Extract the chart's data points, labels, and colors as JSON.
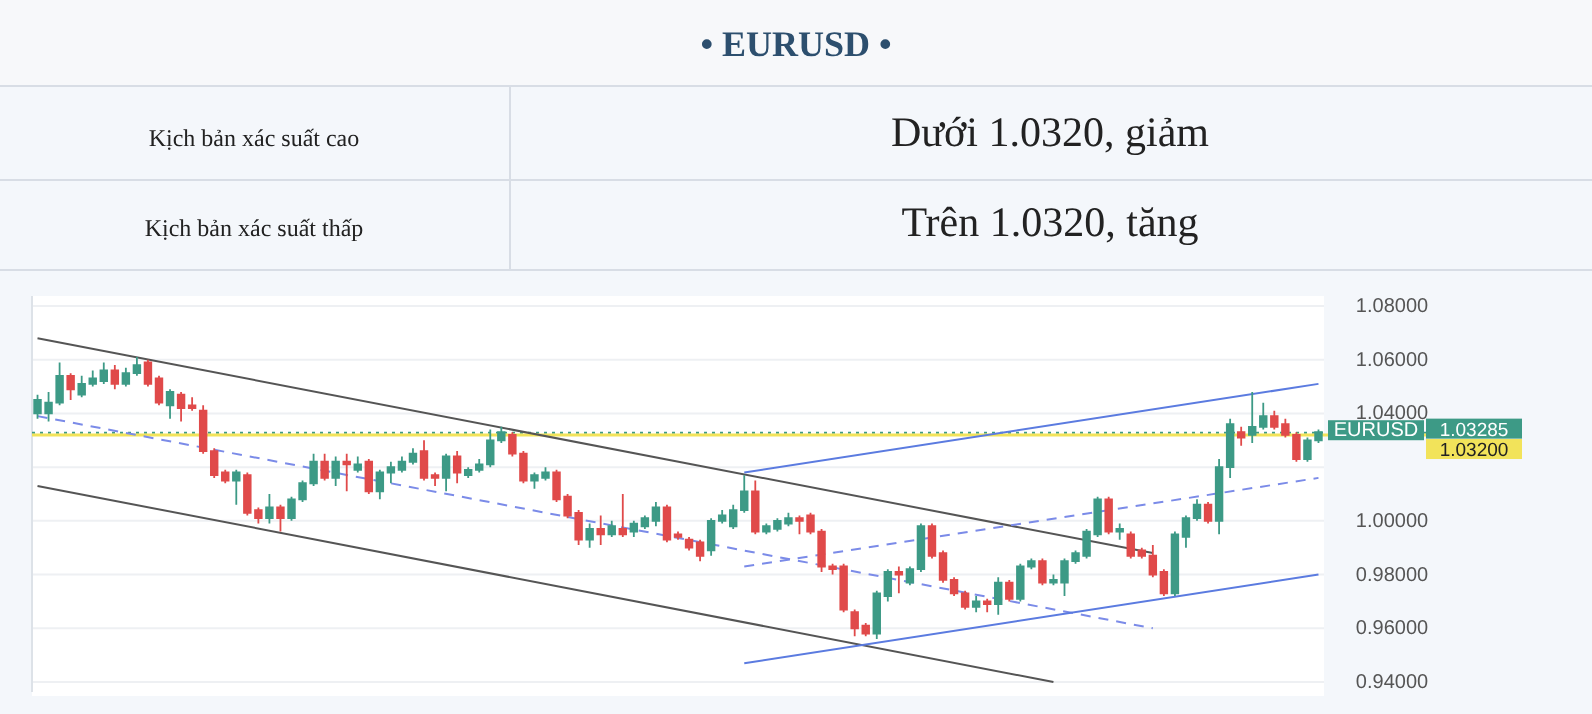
{
  "chart_data": {
    "type": "candlestick",
    "title": "• EURUSD •",
    "annotations": [
      "Kịch bản xác suất cao",
      "Dưới 1.0320, giảm",
      "Kịch bản xác suất thấp",
      "Trên 1.0320, tăng"
    ],
    "categories": [
      null,
      null,
      null,
      null,
      null,
      null,
      null,
      null,
      null,
      null,
      null,
      null,
      null,
      null,
      null,
      null,
      null,
      null,
      null,
      null,
      null,
      null,
      null,
      null,
      null,
      null,
      null,
      null,
      null,
      null,
      null,
      null,
      null,
      null,
      null,
      null,
      null,
      null,
      null,
      null,
      null,
      null,
      null,
      null,
      null,
      null,
      null,
      null,
      null,
      null,
      null,
      null,
      null,
      null,
      null,
      null,
      null,
      null,
      null,
      null,
      null,
      null,
      null,
      null,
      null,
      null,
      null,
      null,
      null,
      null,
      null,
      null,
      null,
      null,
      null,
      null,
      null,
      null,
      null,
      null,
      null,
      null,
      null,
      null,
      null,
      null,
      null,
      null,
      null,
      null,
      null,
      null,
      null,
      null,
      null,
      null,
      null,
      null,
      null,
      null,
      null,
      null,
      null,
      null,
      null,
      null,
      null,
      null,
      null,
      null,
      null,
      null,
      null,
      null,
      null,
      null,
      null
    ],
    "ylim": [
      0.94,
      1.08
    ],
    "yticks": [
      {
        "value": 0.94,
        "label": "0.94000"
      },
      {
        "value": 0.96,
        "label": "0.96000"
      },
      {
        "value": 0.98,
        "label": "0.98000"
      },
      {
        "value": 1.0,
        "label": "1.00000"
      },
      {
        "value": 1.02,
        "label": null
      },
      {
        "value": 1.04,
        "label": "1.04000"
      },
      {
        "value": 1.06,
        "label": "1.06000"
      },
      {
        "value": 1.08,
        "label": "1.08000"
      }
    ],
    "tick_labels": "y",
    "grid": "y",
    "legend": "right",
    "ref_lines": [
      {
        "axis": "y",
        "value": 1.03285,
        "label": "1.03285",
        "color": "#3d9a86",
        "line_style": "dotted"
      },
      {
        "axis": "y",
        "value": 1.032,
        "label": "1.03200",
        "color": "#f2e35a",
        "line_style": "solid"
      }
    ],
    "series": [
      {
        "name": "EURUSD",
        "colors": [
          "#3d9a86",
          "#3d9a86",
          "#3d9a86",
          "#e04a4a",
          "#3d9a86",
          "#3d9a86",
          "#3d9a86",
          "#e04a4a",
          "#3d9a86",
          "#3d9a86",
          "#e04a4a",
          "#e04a4a",
          "#3d9a86",
          "#e04a4a",
          "#e04a4a",
          "#e04a4a",
          "#e04a4a",
          "#e04a4a",
          "#3d9a86",
          "#e04a4a",
          "#e04a4a",
          "#3d9a86",
          "#e04a4a",
          "#3d9a86",
          "#3d9a86",
          "#3d9a86",
          "#e04a4a",
          "#3d9a86",
          "#e04a4a",
          "#3d9a86",
          "#e04a4a",
          "#3d9a86",
          "#3d9a86",
          "#3d9a86",
          "#3d9a86",
          "#e04a4a",
          "#e04a4a",
          "#3d9a86",
          "#e04a4a",
          "#3d9a86",
          "#3d9a86",
          "#3d9a86",
          "#3d9a86",
          "#e04a4a",
          "#e04a4a",
          "#3d9a86",
          "#3d9a86",
          "#e04a4a",
          "#e04a4a",
          "#e04a4a",
          "#3d9a86",
          "#e04a4a",
          "#3d9a86",
          "#e04a4a",
          "#3d9a86",
          "#3d9a86",
          "#3d9a86",
          "#e04a4a",
          "#e04a4a",
          "#e04a4a",
          "#e04a4a",
          "#3d9a86",
          "#3d9a86",
          "#3d9a86",
          "#3d9a86",
          "#e04a4a",
          "#3d9a86",
          "#3d9a86",
          "#3d9a86",
          "#e04a4a",
          "#e04a4a",
          "#e04a4a",
          "#e04a4a",
          "#e04a4a",
          "#e04a4a",
          "#e04a4a",
          "#3d9a86",
          "#3d9a86",
          "#e04a4a",
          "#3d9a86",
          "#3d9a86",
          "#e04a4a",
          "#e04a4a",
          "#e04a4a",
          "#e04a4a",
          "#3d9a86",
          "#e04a4a",
          "#3d9a86",
          "#e04a4a",
          "#3d9a86",
          "#3d9a86",
          "#e04a4a",
          "#3d9a86",
          "#3d9a86",
          "#3d9a86",
          "#3d9a86",
          "#3d9a86",
          "#e04a4a",
          "#3d9a86",
          "#e04a4a",
          "#e04a4a",
          "#e04a4a",
          "#e04a4a",
          "#3d9a86",
          "#3d9a86",
          "#3d9a86",
          "#e04a4a",
          "#3d9a86",
          "#3d9a86",
          "#e04a4a",
          "#3d9a86",
          "#3d9a86",
          "#e04a4a",
          "#e04a4a",
          "#e04a4a",
          "#3d9a86",
          "#3d9a86"
        ],
        "type": "candlestick",
        "ohlc": [
          [
            1.04,
            1.047,
            1.038,
            1.045
          ],
          [
            1.04,
            1.048,
            1.037,
            1.044
          ],
          [
            1.044,
            1.059,
            1.043,
            1.054
          ],
          [
            1.054,
            1.055,
            1.045,
            1.049
          ],
          [
            1.047,
            1.054,
            1.046,
            1.051
          ],
          [
            1.051,
            1.056,
            1.05,
            1.053
          ],
          [
            1.052,
            1.059,
            1.051,
            1.056
          ],
          [
            1.056,
            1.058,
            1.049,
            1.051
          ],
          [
            1.051,
            1.057,
            1.05,
            1.055
          ],
          [
            1.055,
            1.061,
            1.054,
            1.058
          ],
          [
            1.059,
            1.06,
            1.05,
            1.051
          ],
          [
            1.053,
            1.054,
            1.043,
            1.044
          ],
          [
            1.043,
            1.049,
            1.038,
            1.048
          ],
          [
            1.047,
            1.048,
            1.037,
            1.042
          ],
          [
            1.043,
            1.046,
            1.041,
            1.042
          ],
          [
            1.041,
            1.043,
            1.025,
            1.026
          ],
          [
            1.026,
            1.027,
            1.016,
            1.017
          ],
          [
            1.018,
            1.019,
            1.014,
            1.015
          ],
          [
            1.015,
            1.019,
            1.006,
            1.018
          ],
          [
            1.017,
            1.018,
            1.002,
            1.003
          ],
          [
            1.004,
            1.005,
            0.999,
            1.001
          ],
          [
            1.001,
            1.01,
            0.999,
            1.005
          ],
          [
            1.005,
            1.006,
            0.996,
            1.001
          ],
          [
            1.001,
            1.009,
            1.0,
            1.008
          ],
          [
            1.008,
            1.015,
            1.007,
            1.014
          ],
          [
            1.014,
            1.025,
            1.013,
            1.022
          ],
          [
            1.022,
            1.025,
            1.015,
            1.016
          ],
          [
            1.016,
            1.024,
            1.013,
            1.022
          ],
          [
            1.022,
            1.025,
            1.011,
            1.021
          ],
          [
            1.019,
            1.024,
            1.018,
            1.021
          ],
          [
            1.022,
            1.023,
            1.01,
            1.011
          ],
          [
            1.011,
            1.019,
            1.008,
            1.018
          ],
          [
            1.018,
            1.022,
            1.014,
            1.02
          ],
          [
            1.019,
            1.024,
            1.018,
            1.022
          ],
          [
            1.022,
            1.027,
            1.021,
            1.025
          ],
          [
            1.026,
            1.03,
            1.015,
            1.016
          ],
          [
            1.017,
            1.018,
            1.013,
            1.016
          ],
          [
            1.016,
            1.025,
            1.011,
            1.024
          ],
          [
            1.024,
            1.026,
            1.014,
            1.018
          ],
          [
            1.017,
            1.02,
            1.016,
            1.019
          ],
          [
            1.019,
            1.023,
            1.018,
            1.021
          ],
          [
            1.021,
            1.034,
            1.02,
            1.03
          ],
          [
            1.03,
            1.035,
            1.029,
            1.033
          ],
          [
            1.032,
            1.033,
            1.024,
            1.025
          ],
          [
            1.025,
            1.026,
            1.014,
            1.015
          ],
          [
            1.015,
            1.018,
            1.012,
            1.017
          ],
          [
            1.016,
            1.02,
            1.015,
            1.018
          ],
          [
            1.018,
            1.019,
            1.007,
            1.008
          ],
          [
            1.009,
            1.01,
            1.001,
            1.002
          ],
          [
            1.003,
            1.004,
            0.991,
            0.993
          ],
          [
            0.993,
            0.999,
            0.99,
            0.997
          ],
          [
            0.997,
            1.002,
            0.991,
            0.995
          ],
          [
            0.995,
            1.0,
            0.994,
            0.998
          ],
          [
            0.997,
            1.01,
            0.994,
            0.995
          ],
          [
            0.996,
            1.0,
            0.994,
            0.999
          ],
          [
            0.998,
            1.002,
            0.997,
            1.001
          ],
          [
            1.0,
            1.007,
            0.998,
            1.005
          ],
          [
            1.005,
            1.006,
            0.992,
            0.993
          ],
          [
            0.995,
            0.996,
            0.993,
            0.994
          ],
          [
            0.993,
            0.994,
            0.989,
            0.99
          ],
          [
            0.992,
            0.993,
            0.985,
            0.987
          ],
          [
            0.989,
            1.001,
            0.987,
            1.0
          ],
          [
            1.0,
            1.004,
            0.999,
            1.002
          ],
          [
            0.998,
            1.006,
            0.997,
            1.004
          ],
          [
            1.004,
            1.017,
            1.003,
            1.011
          ],
          [
            1.011,
            1.015,
            0.995,
            0.996
          ],
          [
            0.996,
            0.999,
            0.995,
            0.998
          ],
          [
            0.997,
            1.001,
            0.996,
            1.0
          ],
          [
            0.999,
            1.003,
            0.998,
            1.001
          ],
          [
            1.001,
            1.002,
            0.995,
            1.0
          ],
          [
            1.002,
            1.003,
            0.995,
            0.996
          ],
          [
            0.996,
            0.997,
            0.981,
            0.983
          ],
          [
            0.983,
            0.984,
            0.98,
            0.982
          ],
          [
            0.983,
            0.984,
            0.966,
            0.967
          ],
          [
            0.966,
            0.967,
            0.957,
            0.96
          ],
          [
            0.961,
            0.962,
            0.957,
            0.958
          ],
          [
            0.958,
            0.974,
            0.956,
            0.973
          ],
          [
            0.972,
            0.982,
            0.97,
            0.981
          ],
          [
            0.981,
            0.983,
            0.973,
            0.98
          ],
          [
            0.977,
            0.983,
            0.976,
            0.982
          ],
          [
            0.982,
            0.999,
            0.981,
            0.998
          ],
          [
            0.998,
            0.999,
            0.986,
            0.987
          ],
          [
            0.988,
            0.989,
            0.977,
            0.978
          ],
          [
            0.978,
            0.979,
            0.972,
            0.973
          ],
          [
            0.973,
            0.974,
            0.967,
            0.968
          ],
          [
            0.968,
            0.972,
            0.966,
            0.97
          ],
          [
            0.97,
            0.971,
            0.966,
            0.969
          ],
          [
            0.969,
            0.979,
            0.965,
            0.977
          ],
          [
            0.977,
            0.978,
            0.97,
            0.971
          ],
          [
            0.971,
            0.984,
            0.97,
            0.983
          ],
          [
            0.983,
            0.986,
            0.982,
            0.985
          ],
          [
            0.985,
            0.986,
            0.976,
            0.977
          ],
          [
            0.977,
            0.98,
            0.976,
            0.978
          ],
          [
            0.977,
            0.986,
            0.972,
            0.985
          ],
          [
            0.985,
            0.989,
            0.984,
            0.988
          ],
          [
            0.987,
            0.997,
            0.986,
            0.996
          ],
          [
            0.995,
            1.009,
            0.994,
            1.008
          ],
          [
            1.008,
            1.009,
            0.995,
            0.996
          ],
          [
            0.996,
            0.999,
            0.993,
            0.997
          ],
          [
            0.995,
            0.996,
            0.986,
            0.987
          ],
          [
            0.989,
            0.99,
            0.986,
            0.987
          ],
          [
            0.987,
            0.991,
            0.979,
            0.98
          ],
          [
            0.981,
            0.982,
            0.972,
            0.973
          ],
          [
            0.973,
            0.996,
            0.972,
            0.995
          ],
          [
            0.994,
            1.002,
            0.99,
            1.001
          ],
          [
            1.001,
            1.008,
            1.0,
            1.006
          ],
          [
            1.006,
            1.007,
            0.999,
            1.0
          ],
          [
            1.0,
            1.023,
            0.995,
            1.02
          ],
          [
            1.02,
            1.038,
            1.016,
            1.036
          ],
          [
            1.033,
            1.035,
            1.028,
            1.031
          ],
          [
            1.032,
            1.048,
            1.029,
            1.035
          ],
          [
            1.035,
            1.044,
            1.034,
            1.039
          ],
          [
            1.039,
            1.041,
            1.034,
            1.035
          ],
          [
            1.036,
            1.038,
            1.031,
            1.032
          ],
          [
            1.032,
            1.033,
            1.022,
            1.023
          ],
          [
            1.023,
            1.031,
            1.022,
            1.03
          ],
          [
            1.03,
            1.034,
            1.029,
            1.033
          ]
        ]
      },
      {
        "type": "line",
        "color": "#555555",
        "line_style": "solid",
        "values": [
          1.068,
          null,
          null,
          null,
          null,
          null,
          null,
          null,
          null,
          null,
          null,
          null,
          null,
          null,
          null,
          null,
          null,
          null,
          null,
          null,
          null,
          null,
          null,
          null,
          null,
          null,
          null,
          null,
          null,
          null,
          null,
          null,
          null,
          null,
          null,
          null,
          null,
          null,
          null,
          null,
          null,
          null,
          null,
          null,
          null,
          null,
          null,
          null,
          null,
          null,
          null,
          null,
          null,
          null,
          null,
          null,
          null,
          null,
          null,
          null,
          null,
          null,
          null,
          null,
          null,
          null,
          null,
          null,
          null,
          null,
          null,
          null,
          null,
          null,
          null,
          null,
          null,
          null,
          null,
          null,
          null,
          null,
          null,
          null,
          null,
          null,
          null,
          null,
          null,
          null,
          null,
          null,
          null,
          null,
          null,
          null,
          null,
          null,
          null,
          null,
          null,
          0.988,
          null,
          null,
          null,
          null,
          null,
          null,
          null,
          null,
          null,
          null,
          null,
          null,
          null,
          null,
          null
        ]
      },
      {
        "type": "line",
        "color": "#555555",
        "line_style": "solid",
        "values": [
          1.013,
          null,
          null,
          null,
          null,
          null,
          null,
          null,
          null,
          null,
          null,
          null,
          null,
          null,
          null,
          null,
          null,
          null,
          null,
          null,
          null,
          null,
          null,
          null,
          null,
          null,
          null,
          null,
          null,
          null,
          null,
          null,
          null,
          null,
          null,
          null,
          null,
          null,
          null,
          null,
          null,
          null,
          null,
          null,
          null,
          null,
          null,
          null,
          null,
          null,
          null,
          null,
          null,
          null,
          null,
          null,
          null,
          null,
          null,
          null,
          null,
          null,
          null,
          null,
          null,
          null,
          null,
          null,
          null,
          null,
          null,
          null,
          null,
          null,
          null,
          null,
          null,
          null,
          null,
          null,
          null,
          null,
          null,
          null,
          null,
          null,
          null,
          null,
          null,
          null,
          null,
          null,
          0.94,
          null,
          null,
          null,
          null,
          null,
          null,
          null,
          null,
          null,
          null,
          null,
          null,
          null,
          null,
          null,
          null,
          null,
          null,
          null,
          null,
          null,
          null,
          null,
          null
        ]
      },
      {
        "type": "line",
        "color": "#7b8be8",
        "line_style": "dashed",
        "values": [
          1.039,
          null,
          null,
          null,
          null,
          null,
          null,
          null,
          null,
          null,
          null,
          null,
          null,
          null,
          null,
          null,
          null,
          null,
          null,
          null,
          null,
          null,
          null,
          null,
          null,
          null,
          null,
          null,
          null,
          null,
          null,
          null,
          null,
          null,
          null,
          null,
          null,
          null,
          null,
          null,
          null,
          null,
          null,
          null,
          null,
          null,
          null,
          null,
          null,
          null,
          null,
          null,
          null,
          null,
          null,
          null,
          null,
          null,
          null,
          null,
          null,
          null,
          null,
          null,
          null,
          null,
          null,
          null,
          null,
          null,
          null,
          null,
          null,
          null,
          null,
          null,
          null,
          null,
          null,
          null,
          null,
          null,
          null,
          null,
          null,
          null,
          null,
          null,
          null,
          null,
          null,
          null,
          null,
          null,
          null,
          null,
          null,
          null,
          null,
          null,
          null,
          0.96,
          null,
          null,
          null,
          null,
          null,
          null,
          null,
          null,
          null,
          null,
          null,
          null,
          null,
          null,
          null
        ]
      },
      {
        "type": "line",
        "color": "#5b7be0",
        "line_style": "solid",
        "values": [
          null,
          null,
          null,
          null,
          null,
          null,
          null,
          null,
          null,
          null,
          null,
          null,
          null,
          null,
          null,
          null,
          null,
          null,
          null,
          null,
          null,
          null,
          null,
          null,
          null,
          null,
          null,
          null,
          null,
          null,
          null,
          null,
          null,
          null,
          null,
          null,
          null,
          null,
          null,
          null,
          null,
          null,
          null,
          null,
          null,
          null,
          null,
          null,
          null,
          null,
          null,
          null,
          null,
          null,
          null,
          null,
          null,
          null,
          null,
          null,
          null,
          null,
          null,
          null,
          0.947,
          null,
          null,
          null,
          null,
          null,
          null,
          null,
          null,
          null,
          null,
          null,
          null,
          null,
          null,
          null,
          null,
          null,
          null,
          null,
          null,
          null,
          null,
          null,
          null,
          null,
          null,
          null,
          null,
          null,
          null,
          null,
          null,
          null,
          null,
          null,
          null,
          null,
          null,
          null,
          null,
          null,
          null,
          null,
          null,
          null,
          null,
          null,
          null,
          null,
          null,
          null,
          0.98
        ]
      },
      {
        "type": "line",
        "color": "#5b7be0",
        "line_style": "solid",
        "values": [
          null,
          null,
          null,
          null,
          null,
          null,
          null,
          null,
          null,
          null,
          null,
          null,
          null,
          null,
          null,
          null,
          null,
          null,
          null,
          null,
          null,
          null,
          null,
          null,
          null,
          null,
          null,
          null,
          null,
          null,
          null,
          null,
          null,
          null,
          null,
          null,
          null,
          null,
          null,
          null,
          null,
          null,
          null,
          null,
          null,
          null,
          null,
          null,
          null,
          null,
          null,
          null,
          null,
          null,
          null,
          null,
          null,
          null,
          null,
          null,
          null,
          null,
          null,
          null,
          1.018,
          null,
          null,
          null,
          null,
          null,
          null,
          null,
          null,
          null,
          null,
          null,
          null,
          null,
          null,
          null,
          null,
          null,
          null,
          null,
          null,
          null,
          null,
          null,
          null,
          null,
          null,
          null,
          null,
          null,
          null,
          null,
          null,
          null,
          null,
          null,
          null,
          null,
          null,
          null,
          null,
          null,
          null,
          null,
          null,
          null,
          null,
          null,
          null,
          null,
          null,
          null,
          1.051
        ]
      },
      {
        "type": "line",
        "color": "#7b8be8",
        "line_style": "dashed",
        "values": [
          null,
          null,
          null,
          null,
          null,
          null,
          null,
          null,
          null,
          null,
          null,
          null,
          null,
          null,
          null,
          null,
          null,
          null,
          null,
          null,
          null,
          null,
          null,
          null,
          null,
          null,
          null,
          null,
          null,
          null,
          null,
          null,
          null,
          null,
          null,
          null,
          null,
          null,
          null,
          null,
          null,
          null,
          null,
          null,
          null,
          null,
          null,
          null,
          null,
          null,
          null,
          null,
          null,
          null,
          null,
          null,
          null,
          null,
          null,
          null,
          null,
          null,
          null,
          null,
          0.983,
          null,
          null,
          null,
          null,
          null,
          null,
          null,
          null,
          null,
          null,
          null,
          null,
          null,
          null,
          null,
          null,
          null,
          null,
          null,
          null,
          null,
          null,
          null,
          null,
          null,
          null,
          null,
          null,
          null,
          null,
          null,
          null,
          null,
          null,
          null,
          null,
          null,
          null,
          null,
          null,
          null,
          null,
          null,
          null,
          null,
          null,
          null,
          null,
          null,
          null,
          null,
          1.016
        ]
      }
    ]
  }
}
